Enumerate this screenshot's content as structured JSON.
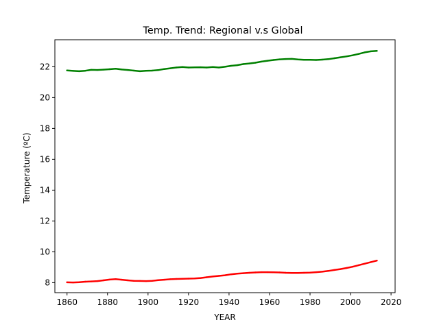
{
  "chart_data": {
    "type": "line",
    "title": "Temp. Trend: Regional v.s Global",
    "xlabel": "YEAR",
    "ylabel": "Temperature (ºC)",
    "xlim": [
      1854,
      2022
    ],
    "ylim": [
      7.35,
      23.75
    ],
    "xticks": [
      1860,
      1880,
      1900,
      1920,
      1940,
      1960,
      1980,
      2000,
      2020
    ],
    "yticks": [
      8,
      10,
      12,
      14,
      16,
      18,
      20,
      22
    ],
    "grid": false,
    "series": [
      {
        "color": "#008000",
        "x": [
          1860,
          1863,
          1866,
          1869,
          1872,
          1875,
          1878,
          1881,
          1884,
          1887,
          1890,
          1893,
          1896,
          1899,
          1902,
          1905,
          1908,
          1911,
          1914,
          1917,
          1920,
          1923,
          1926,
          1929,
          1932,
          1935,
          1938,
          1941,
          1944,
          1947,
          1950,
          1953,
          1956,
          1959,
          1962,
          1965,
          1968,
          1971,
          1974,
          1977,
          1980,
          1983,
          1986,
          1989,
          1992,
          1995,
          1998,
          2001,
          2004,
          2007,
          2010,
          2013
        ],
        "values": [
          21.76,
          21.73,
          21.71,
          21.74,
          21.8,
          21.79,
          21.81,
          21.84,
          21.87,
          21.82,
          21.79,
          21.75,
          21.71,
          21.74,
          21.75,
          21.78,
          21.85,
          21.9,
          21.95,
          21.98,
          21.95,
          21.96,
          21.97,
          21.95,
          21.98,
          21.95,
          22.0,
          22.06,
          22.1,
          22.17,
          22.21,
          22.26,
          22.33,
          22.39,
          22.44,
          22.48,
          22.5,
          22.51,
          22.47,
          22.45,
          22.45,
          22.44,
          22.46,
          22.49,
          22.55,
          22.61,
          22.67,
          22.74,
          22.83,
          22.93,
          23.0,
          23.03
        ]
      },
      {
        "color": "#ff0000",
        "x": [
          1860,
          1863,
          1866,
          1869,
          1872,
          1875,
          1878,
          1881,
          1884,
          1887,
          1890,
          1893,
          1896,
          1899,
          1902,
          1905,
          1908,
          1911,
          1914,
          1917,
          1920,
          1923,
          1926,
          1929,
          1932,
          1935,
          1938,
          1941,
          1944,
          1947,
          1950,
          1953,
          1956,
          1959,
          1962,
          1965,
          1968,
          1971,
          1974,
          1977,
          1980,
          1983,
          1986,
          1989,
          1992,
          1995,
          1998,
          2001,
          2004,
          2007,
          2010,
          2013
        ],
        "values": [
          8.02,
          8.01,
          8.03,
          8.06,
          8.08,
          8.1,
          8.15,
          8.2,
          8.23,
          8.19,
          8.15,
          8.12,
          8.11,
          8.1,
          8.12,
          8.16,
          8.19,
          8.22,
          8.24,
          8.25,
          8.26,
          8.27,
          8.3,
          8.35,
          8.4,
          8.44,
          8.48,
          8.54,
          8.58,
          8.61,
          8.64,
          8.66,
          8.68,
          8.68,
          8.67,
          8.66,
          8.64,
          8.63,
          8.63,
          8.64,
          8.65,
          8.68,
          8.71,
          8.76,
          8.82,
          8.88,
          8.95,
          9.03,
          9.13,
          9.23,
          9.33,
          9.43
        ]
      }
    ]
  }
}
